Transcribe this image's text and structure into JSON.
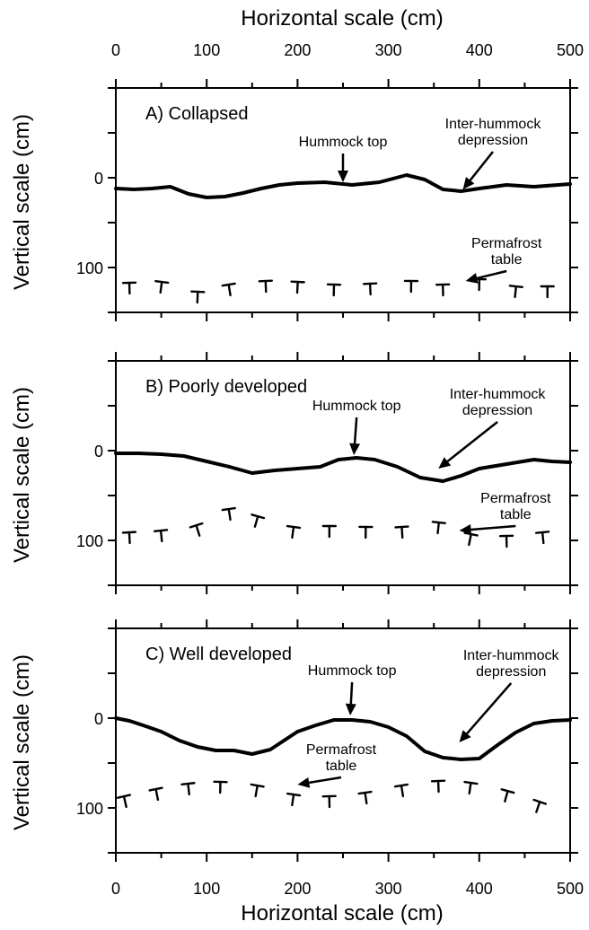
{
  "top_axis": {
    "title": "Horizontal scale (cm)",
    "ticks": [
      0,
      100,
      200,
      300,
      400,
      500
    ]
  },
  "bottom_axis": {
    "title": "Horizontal scale (cm)",
    "ticks": [
      0,
      100,
      200,
      300,
      400,
      500
    ]
  },
  "chart_data": [
    {
      "type": "line",
      "title": "A) Collapsed",
      "xlabel": "Horizontal scale (cm)",
      "ylabel": "Vertical scale (cm)",
      "xlim": [
        0,
        500
      ],
      "ylim": [
        -100,
        150
      ],
      "y_inverted": true,
      "yticks": [
        0,
        100
      ],
      "grid": false,
      "series": [
        {
          "role": "surface",
          "style": "solid",
          "x": [
            0,
            20,
            40,
            60,
            80,
            100,
            120,
            140,
            160,
            180,
            200,
            230,
            260,
            290,
            320,
            340,
            360,
            380,
            400,
            430,
            460,
            500
          ],
          "y": [
            12,
            13,
            12,
            10,
            18,
            22,
            21,
            17,
            12,
            8,
            6,
            5,
            8,
            5,
            -3,
            2,
            13,
            15,
            12,
            8,
            10,
            7
          ]
        },
        {
          "role": "permafrost",
          "style": "t-markers",
          "x": [
            15,
            50,
            90,
            125,
            165,
            200,
            240,
            280,
            325,
            360,
            400,
            440,
            475
          ],
          "y": [
            122,
            121,
            132,
            124,
            120,
            121,
            124,
            123,
            120,
            124,
            118,
            126,
            126
          ]
        }
      ],
      "annotations": [
        {
          "text": [
            "Hummock top"
          ],
          "x": 250,
          "y": -35,
          "arrow_to": [
            250,
            5
          ]
        },
        {
          "text": [
            "Inter-hummock",
            "depression"
          ],
          "x": 415,
          "y": -55,
          "arrow_to": [
            382,
            13
          ]
        },
        {
          "text": [
            "Permafrost",
            "table"
          ],
          "x": 430,
          "y": 78,
          "arrow_to": [
            385,
            115
          ]
        }
      ]
    },
    {
      "type": "line",
      "title": "B) Poorly developed",
      "xlabel": "Horizontal scale (cm)",
      "ylabel": "Vertical scale (cm)",
      "xlim": [
        0,
        500
      ],
      "ylim": [
        -100,
        150
      ],
      "y_inverted": true,
      "yticks": [
        0,
        100
      ],
      "grid": false,
      "series": [
        {
          "role": "surface",
          "style": "solid",
          "x": [
            0,
            25,
            50,
            75,
            100,
            125,
            150,
            175,
            200,
            225,
            245,
            265,
            285,
            310,
            335,
            360,
            380,
            400,
            430,
            460,
            480,
            500
          ],
          "y": [
            3,
            3,
            4,
            6,
            12,
            18,
            25,
            22,
            20,
            18,
            10,
            8,
            10,
            18,
            30,
            34,
            28,
            20,
            15,
            10,
            12,
            13
          ]
        },
        {
          "role": "permafrost",
          "style": "t-markers",
          "x": [
            15,
            50,
            90,
            125,
            155,
            195,
            235,
            275,
            315,
            355,
            390,
            430,
            470
          ],
          "y": [
            96,
            94,
            88,
            70,
            78,
            90,
            89,
            90,
            90,
            85,
            98,
            100,
            96
          ]
        }
      ],
      "annotations": [
        {
          "text": [
            "Hummock top"
          ],
          "x": 265,
          "y": -45,
          "arrow_to": [
            262,
            5
          ]
        },
        {
          "text": [
            "Inter-hummock",
            "depression"
          ],
          "x": 420,
          "y": -58,
          "arrow_to": [
            355,
            20
          ]
        },
        {
          "text": [
            "Permafrost",
            "table"
          ],
          "x": 440,
          "y": 58,
          "arrow_to": [
            378,
            89
          ]
        }
      ]
    },
    {
      "type": "line",
      "title": "C) Well developed",
      "xlabel": "Horizontal scale (cm)",
      "ylabel": "Vertical scale (cm)",
      "xlim": [
        0,
        500
      ],
      "ylim": [
        -100,
        150
      ],
      "y_inverted": true,
      "yticks": [
        0,
        100
      ],
      "grid": false,
      "series": [
        {
          "role": "surface",
          "style": "solid",
          "x": [
            0,
            15,
            30,
            50,
            70,
            90,
            110,
            130,
            150,
            170,
            185,
            200,
            220,
            240,
            260,
            280,
            300,
            320,
            340,
            360,
            380,
            400,
            420,
            440,
            460,
            480,
            500
          ],
          "y": [
            0,
            3,
            8,
            15,
            25,
            32,
            36,
            36,
            40,
            35,
            25,
            15,
            8,
            2,
            2,
            4,
            10,
            20,
            37,
            44,
            46,
            45,
            30,
            16,
            6,
            3,
            2
          ]
        },
        {
          "role": "permafrost",
          "style": "t-markers",
          "x": [
            10,
            45,
            80,
            115,
            155,
            195,
            235,
            275,
            315,
            355,
            390,
            430,
            465
          ],
          "y": [
            92,
            84,
            78,
            76,
            80,
            90,
            92,
            88,
            80,
            75,
            77,
            86,
            98
          ]
        }
      ],
      "annotations": [
        {
          "text": [
            "Hummock top"
          ],
          "x": 260,
          "y": -48,
          "arrow_to": [
            258,
            -3
          ]
        },
        {
          "text": [
            "Inter-hummock",
            "depression"
          ],
          "x": 435,
          "y": -65,
          "arrow_to": [
            378,
            27
          ]
        },
        {
          "text": [
            "Permafrost",
            "table"
          ],
          "x": 248,
          "y": 40,
          "arrow_to": [
            200,
            74
          ]
        }
      ]
    }
  ]
}
